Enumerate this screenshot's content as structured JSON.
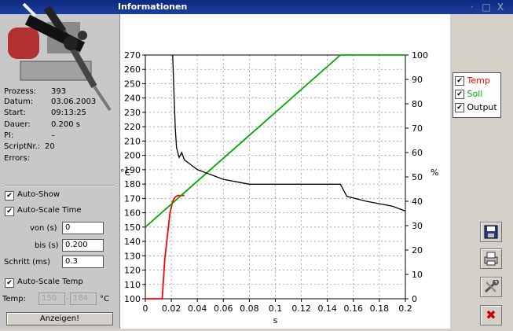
{
  "window": {
    "title": "Informationen",
    "controls": {
      "minimize": "·",
      "maximize": "□",
      "close": "X"
    }
  },
  "info": {
    "prozess_label": "Prozess:",
    "prozess": "393",
    "datum_label": "Datum:",
    "datum": "03.06.2003",
    "start_label": "Start:",
    "start": "09:13:25",
    "dauer_label": "Dauer:",
    "dauer": "0.200 s",
    "pi_label": "PI:",
    "pi": "–",
    "scriptnr_label": "ScriptNr.:",
    "scriptnr": "20",
    "errors_label": "Errors:"
  },
  "options": {
    "auto_show": "Auto-Show",
    "auto_scale_time": "Auto-Scale Time",
    "von_label": "von (s)",
    "von_value": "0",
    "bis_label": "bis (s)",
    "bis_value": "0.200",
    "schritt_label": "Schritt (ms)",
    "schritt_value": "0.3",
    "auto_scale_temp": "Auto-Scale Temp",
    "temp_label": "Temp:",
    "temp_from": "150",
    "temp_to": "184",
    "temp_unit": "°C",
    "anzeigen": "Anzeigen!"
  },
  "legend": {
    "temp": "Temp",
    "soll": "Soll",
    "output": "Output"
  },
  "colors": {
    "temp": "#ff0000",
    "soll": "#00aa00",
    "output": "#000000",
    "titlebar": "#0d2a80"
  },
  "icons": [
    "save-icon",
    "printer-icon",
    "tools-icon",
    "close-x-icon"
  ],
  "chart_data": {
    "type": "line",
    "xlabel": "s",
    "ylabel": "°C",
    "y2label": "%",
    "xlim": [
      0,
      0.2
    ],
    "ylim": [
      100,
      270
    ],
    "y2lim": [
      0,
      100
    ],
    "xticks": [
      "0",
      "0.02",
      "0.04",
      "0.06",
      "0.08",
      "0.1",
      "0.12",
      "0.14",
      "0.16",
      "0.18",
      "0.2"
    ],
    "yticks": [
      "100",
      "110",
      "120",
      "130",
      "140",
      "150",
      "160",
      "170",
      "180",
      "190",
      "200",
      "210",
      "220",
      "230",
      "240",
      "250",
      "260",
      "270"
    ],
    "y2ticks": [
      "0",
      "10",
      "20",
      "30",
      "40",
      "50",
      "60",
      "70",
      "80",
      "90",
      "100"
    ],
    "grid": true,
    "series": [
      {
        "name": "Temp",
        "axis": "left",
        "x": [
          0,
          0.013,
          0.015,
          0.019,
          0.021,
          0.023,
          0.025,
          0.03
        ],
        "y": [
          100,
          100,
          128,
          160,
          168,
          171,
          172,
          172
        ]
      },
      {
        "name": "Soll",
        "axis": "left",
        "x": [
          0,
          0.15,
          0.2
        ],
        "y": [
          150,
          270,
          270
        ]
      },
      {
        "name": "Output",
        "axis": "right",
        "x": [
          0.021,
          0.022,
          0.023,
          0.024,
          0.026,
          0.028,
          0.03,
          0.035,
          0.04,
          0.045,
          0.05,
          0.06,
          0.07,
          0.08,
          0.1,
          0.12,
          0.14,
          0.15,
          0.155,
          0.17,
          0.19,
          0.2
        ],
        "y": [
          100,
          85,
          70,
          62,
          58,
          60,
          57,
          55,
          53,
          52,
          51,
          49,
          48,
          47,
          47,
          47,
          47,
          47,
          42,
          40,
          38,
          36
        ]
      }
    ]
  }
}
